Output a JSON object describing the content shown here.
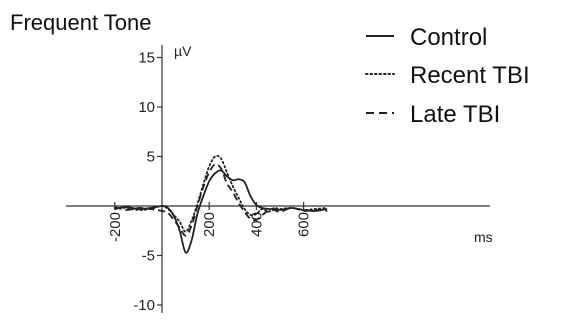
{
  "chart_data": {
    "type": "line",
    "title": "Frequent Tone",
    "y_unit": "µV",
    "x_unit": "ms",
    "xlim": [
      -200,
      700
    ],
    "ylim": [
      -10,
      15
    ],
    "x_ticks": [
      -200,
      200,
      400,
      600
    ],
    "x_tick_labels": [
      "-200",
      "200",
      "400",
      "600"
    ],
    "y_ticks": [
      -10,
      -5,
      5,
      10,
      15
    ],
    "y_tick_labels": [
      "-10",
      "-5",
      "5",
      "10",
      "15"
    ],
    "legend_position": "top-right",
    "series": [
      {
        "name": "Control",
        "style": "solid",
        "x": [
          -200,
          -150,
          -100,
          -50,
          0,
          25,
          50,
          75,
          100,
          125,
          150,
          175,
          200,
          225,
          250,
          275,
          300,
          325,
          350,
          375,
          400,
          425,
          450,
          475,
          500,
          550,
          600,
          650,
          700
        ],
        "y": [
          -0.3,
          -0.1,
          -0.3,
          -0.2,
          0.0,
          -0.2,
          -1.0,
          -2.5,
          -4.7,
          -3.5,
          -0.8,
          1.0,
          2.5,
          3.3,
          3.6,
          3.0,
          2.6,
          2.7,
          2.4,
          1.0,
          0.1,
          -0.2,
          -0.3,
          -0.3,
          -0.4,
          -0.2,
          -0.4,
          -0.5,
          -0.3
        ]
      },
      {
        "name": "Recent TBI",
        "style": "dotted",
        "x": [
          -200,
          -150,
          -100,
          -50,
          0,
          25,
          50,
          75,
          100,
          125,
          150,
          175,
          200,
          225,
          250,
          275,
          300,
          325,
          350,
          375,
          400,
          425,
          450,
          475,
          500,
          550,
          600,
          650,
          700
        ],
        "y": [
          -0.2,
          -0.2,
          -0.4,
          -0.3,
          0.0,
          -0.3,
          -0.9,
          -1.6,
          -2.6,
          -1.5,
          0.2,
          2.2,
          4.0,
          5.0,
          4.8,
          3.4,
          2.0,
          0.8,
          -0.3,
          -0.9,
          -0.8,
          -0.3,
          -0.6,
          -0.2,
          -0.3,
          -0.2,
          -0.4,
          -0.3,
          -0.2
        ]
      },
      {
        "name": "Late TBI",
        "style": "dashed",
        "x": [
          -200,
          -150,
          -100,
          -50,
          0,
          25,
          50,
          75,
          100,
          125,
          150,
          175,
          200,
          225,
          250,
          275,
          300,
          325,
          350,
          375,
          400,
          425,
          450,
          475,
          500,
          550,
          600,
          650,
          700
        ],
        "y": [
          -0.1,
          -0.4,
          -0.2,
          -0.3,
          -0.5,
          -0.7,
          -1.4,
          -2.2,
          -3.0,
          -2.0,
          0.0,
          1.9,
          3.4,
          4.2,
          3.8,
          2.3,
          1.4,
          0.3,
          -0.6,
          -1.3,
          -1.4,
          -0.9,
          -0.5,
          -0.4,
          -0.6,
          -0.2,
          -0.5,
          -0.4,
          -0.5
        ]
      }
    ]
  }
}
